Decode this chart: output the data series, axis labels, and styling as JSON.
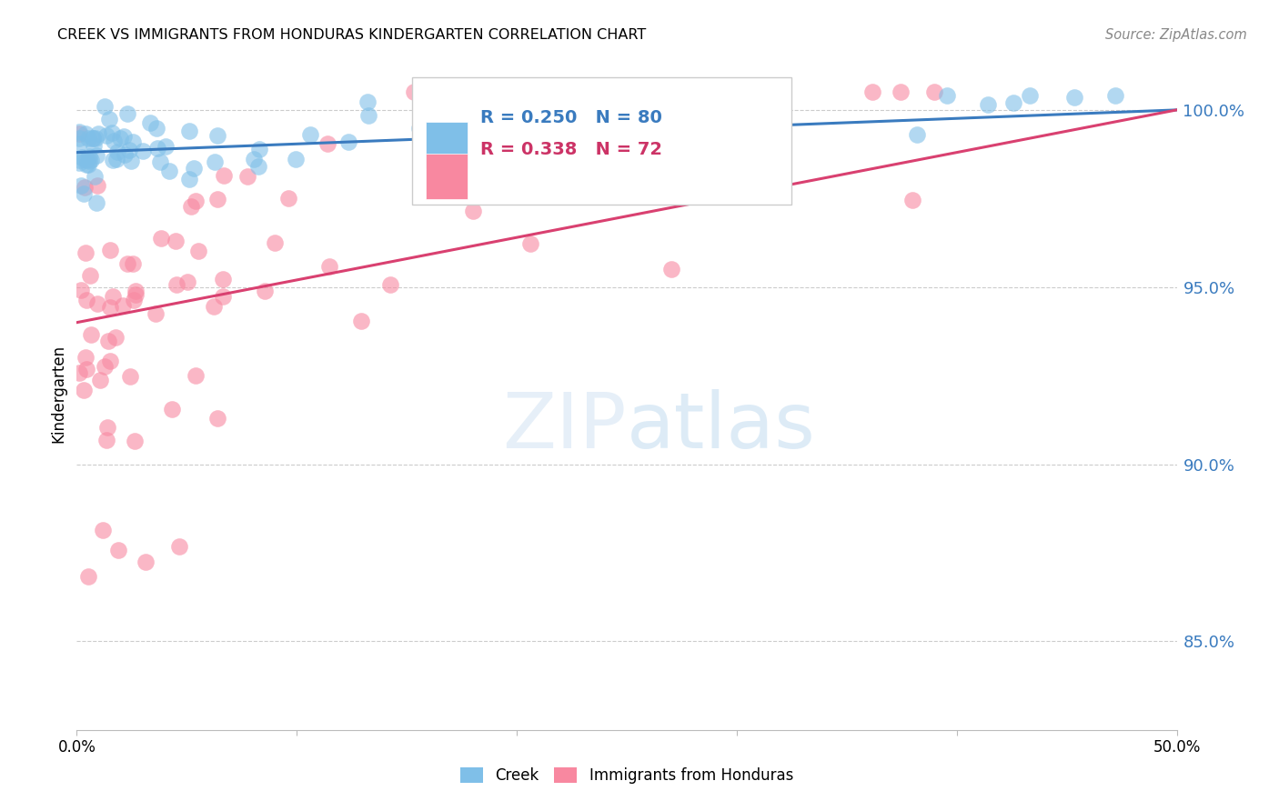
{
  "title": "CREEK VS IMMIGRANTS FROM HONDURAS KINDERGARTEN CORRELATION CHART",
  "source": "Source: ZipAtlas.com",
  "ylabel": "Kindergarten",
  "ytick_labels": [
    "85.0%",
    "90.0%",
    "95.0%",
    "100.0%"
  ],
  "ytick_values": [
    0.85,
    0.9,
    0.95,
    1.0
  ],
  "xlim": [
    0.0,
    0.5
  ],
  "ylim": [
    0.825,
    1.015
  ],
  "creek_R": 0.25,
  "creek_N": 80,
  "honduras_R": 0.338,
  "honduras_N": 72,
  "creek_color": "#7fbfe8",
  "honduras_color": "#f888a0",
  "trendline_creek_color": "#3a7bbf",
  "trendline_honduras_color": "#d94070",
  "background_color": "#ffffff",
  "creek_trendline_y0": 0.988,
  "creek_trendline_y1": 1.0,
  "honduras_trendline_y0": 0.94,
  "honduras_trendline_y1": 1.0,
  "legend_R_creek_color": "#3a7bbf",
  "legend_R_honduras_color": "#cc3366"
}
